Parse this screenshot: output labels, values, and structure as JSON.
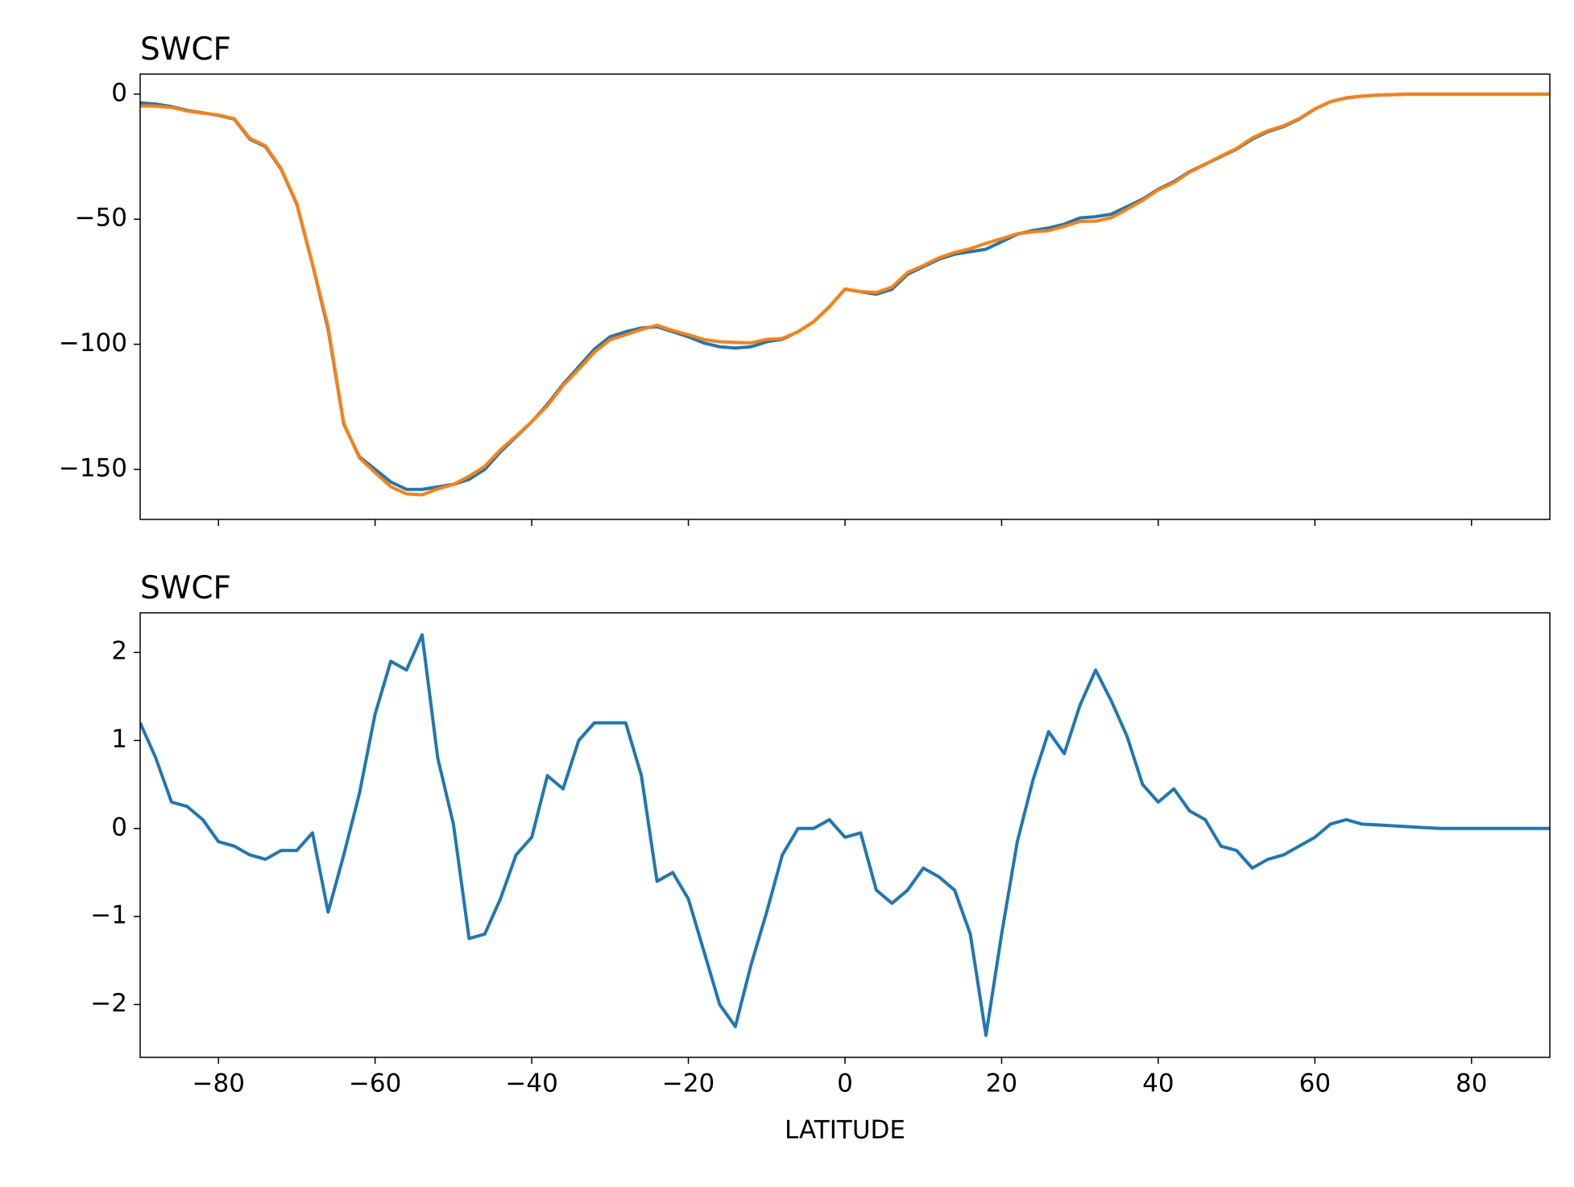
{
  "chart_data": [
    {
      "type": "line",
      "title": "SWCF",
      "x": [
        -90,
        -88,
        -86,
        -84,
        -82,
        -80,
        -78,
        -76,
        -74,
        -72,
        -70,
        -68,
        -66,
        -64,
        -62,
        -60,
        -58,
        -56,
        -54,
        -52,
        -50,
        -48,
        -46,
        -44,
        -42,
        -40,
        -38,
        -36,
        -34,
        -32,
        -30,
        -28,
        -26,
        -24,
        -22,
        -20,
        -18,
        -16,
        -14,
        -12,
        -10,
        -8,
        -6,
        -4,
        -2,
        0,
        2,
        4,
        6,
        8,
        10,
        12,
        14,
        16,
        18,
        20,
        22,
        24,
        26,
        28,
        30,
        32,
        34,
        36,
        38,
        40,
        42,
        44,
        46,
        48,
        50,
        52,
        54,
        56,
        58,
        60,
        62,
        64,
        66,
        68,
        70,
        72,
        74,
        76,
        78,
        80,
        82,
        84,
        86,
        88,
        90
      ],
      "series": [
        {
          "color": "#1f77b4",
          "values": [
            -3.5,
            -4,
            -5,
            -6.5,
            -7.5,
            -8.5,
            -10,
            -18,
            -21,
            -30,
            -44,
            -68,
            -94,
            -132,
            -145,
            -150,
            -155,
            -158,
            -158,
            -157,
            -156,
            -154,
            -150,
            -143,
            -137,
            -131,
            -124,
            -116,
            -109,
            -102,
            -97,
            -95,
            -93.5,
            -93,
            -95,
            -97,
            -99.5,
            -101,
            -101.5,
            -101,
            -99,
            -98,
            -95,
            -91,
            -85,
            -78,
            -79,
            -80,
            -78,
            -72,
            -69,
            -66,
            -64,
            -63,
            -62,
            -59,
            -56,
            -54.5,
            -53.5,
            -52,
            -49.5,
            -49,
            -48,
            -45,
            -42,
            -38,
            -35,
            -31,
            -28,
            -25,
            -22,
            -18,
            -15,
            -13,
            -10,
            -6,
            -3,
            -1.5,
            -0.8,
            -0.4,
            -0.2,
            0,
            0,
            0,
            0,
            0,
            0,
            0,
            0,
            0,
            0
          ]
        },
        {
          "color": "#ff7f0e",
          "values": [
            -4.7,
            -4.8,
            -5.3,
            -6.75,
            -7.6,
            -8.35,
            -9.8,
            -17.7,
            -20.65,
            -29.75,
            -43.75,
            -67.95,
            -93.05,
            -131.7,
            -145.4,
            -151.3,
            -156.9,
            -159.8,
            -160.2,
            -157.8,
            -156.05,
            -152.75,
            -148.8,
            -142.2,
            -136.7,
            -130.9,
            -124.6,
            -116.45,
            -110,
            -103.2,
            -98.2,
            -96.2,
            -94.1,
            -92.4,
            -94.5,
            -96.2,
            -98.1,
            -99,
            -99.25,
            -99.45,
            -98.05,
            -97.7,
            -95,
            -91,
            -85.1,
            -77.9,
            -78.95,
            -79.3,
            -77.15,
            -71.3,
            -68.55,
            -65.45,
            -63.3,
            -61.8,
            -59.65,
            -57.8,
            -55.85,
            -55.05,
            -54.6,
            -52.85,
            -50.9,
            -50.8,
            -49.45,
            -46.05,
            -42.5,
            -38.3,
            -35.45,
            -31.2,
            -28.1,
            -24.8,
            -21.75,
            -17.55,
            -14.65,
            -12.7,
            -9.8,
            -5.9,
            -3.05,
            -1.6,
            -0.85,
            -0.44,
            -0.23,
            -0.02,
            -0.01,
            0,
            0,
            0,
            0,
            0,
            0,
            0,
            0
          ]
        }
      ],
      "xlim": [
        -90,
        90
      ],
      "xticks": [
        -80,
        -60,
        -40,
        -20,
        0,
        20,
        40,
        60,
        80
      ],
      "xticklabels": false,
      "ylim": [
        -170,
        8
      ],
      "yticks": [
        {
          "value": -150,
          "label": "−150"
        },
        {
          "value": -100,
          "label": "−100"
        },
        {
          "value": -50,
          "label": "−50"
        },
        0
      ]
    },
    {
      "type": "line",
      "title": "SWCF",
      "x_label": "LATITUDE",
      "x": [
        -90,
        -88,
        -86,
        -84,
        -82,
        -80,
        -78,
        -76,
        -74,
        -72,
        -70,
        -68,
        -66,
        -64,
        -62,
        -60,
        -58,
        -56,
        -54,
        -52,
        -50,
        -48,
        -46,
        -44,
        -42,
        -40,
        -38,
        -36,
        -34,
        -32,
        -30,
        -28,
        -26,
        -24,
        -22,
        -20,
        -18,
        -16,
        -14,
        -12,
        -10,
        -8,
        -6,
        -4,
        -2,
        0,
        2,
        4,
        6,
        8,
        10,
        12,
        14,
        16,
        18,
        20,
        22,
        24,
        26,
        28,
        30,
        32,
        34,
        36,
        38,
        40,
        42,
        44,
        46,
        48,
        50,
        52,
        54,
        56,
        58,
        60,
        62,
        64,
        66,
        68,
        70,
        72,
        74,
        76,
        78,
        80,
        82,
        84,
        86,
        88,
        90
      ],
      "series": [
        {
          "color": "#1f77b4",
          "values": [
            1.2,
            0.8,
            0.3,
            0.25,
            0.1,
            -0.15,
            -0.2,
            -0.3,
            -0.35,
            -0.25,
            -0.25,
            -0.05,
            -0.95,
            -0.3,
            0.4,
            1.3,
            1.9,
            1.8,
            2.2,
            0.8,
            0.05,
            -1.25,
            -1.2,
            -0.8,
            -0.3,
            -0.1,
            0.6,
            0.45,
            1.0,
            1.2,
            1.2,
            1.2,
            0.6,
            -0.6,
            -0.5,
            -0.8,
            -1.4,
            -2.0,
            -2.25,
            -1.55,
            -0.95,
            -0.3,
            0,
            0,
            0.1,
            -0.1,
            -0.05,
            -0.7,
            -0.85,
            -0.7,
            -0.45,
            -0.55,
            -0.7,
            -1.2,
            -2.35,
            -1.2,
            -0.15,
            0.55,
            1.1,
            0.85,
            1.4,
            1.8,
            1.45,
            1.05,
            0.5,
            0.3,
            0.45,
            0.2,
            0.1,
            -0.2,
            -0.25,
            -0.45,
            -0.35,
            -0.3,
            -0.2,
            -0.1,
            0.05,
            0.1,
            0.05,
            0.04,
            0.03,
            0.02,
            0.01,
            0,
            0,
            0,
            0,
            0,
            0,
            0,
            0
          ]
        }
      ],
      "xlim": [
        -90,
        90
      ],
      "xticks": [
        {
          "value": -80,
          "label": "−80"
        },
        {
          "value": -60,
          "label": "−60"
        },
        {
          "value": -40,
          "label": "−40"
        },
        {
          "value": -20,
          "label": "−20"
        },
        0,
        20,
        40,
        60,
        80
      ],
      "ylim": [
        -2.6,
        2.45
      ],
      "yticks": [
        {
          "value": -2,
          "label": "−2"
        },
        {
          "value": -1,
          "label": "−1"
        },
        0,
        1,
        2
      ]
    }
  ]
}
